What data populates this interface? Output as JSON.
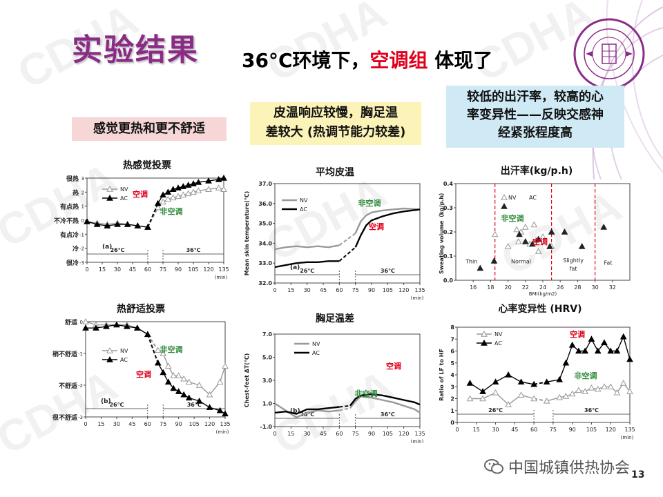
{
  "watermark": "CDHA",
  "title": "实验结果",
  "subtitle": {
    "part1": "36°C环境下，",
    "part2": "空调组",
    "part3": " 体现了"
  },
  "boxes": {
    "b1": "感觉更热和更不舒适",
    "b2_line1": "皮温响应较慢，胸足温",
    "b2_line2": "差较大 (热调节能力较差)",
    "b3_line1": "较低的出汗率，较高的心",
    "b3_line2": "率变异性——反映交感神",
    "b3_line3": "经紧张程度高"
  },
  "footer": {
    "org": "中国城镇供热协会",
    "page": "13"
  },
  "colors": {
    "title": "#8a2b86",
    "red": "#e0001b",
    "green": "#2e8b3a",
    "nv": "#999999",
    "ac": "#000000"
  },
  "chart_data": [
    {
      "id": "thermal-sensation",
      "type": "line",
      "title": "热感觉投票",
      "panel": "(a)",
      "x_unit": "(min)",
      "x_ticks": [
        0,
        15,
        30,
        45,
        60,
        75,
        90,
        105,
        120,
        135
      ],
      "ylim": [
        -3,
        3
      ],
      "y_ticks": [
        3,
        2,
        1,
        0,
        -1,
        -2,
        -3
      ],
      "y_labels": [
        "很热",
        "热",
        "有点热",
        "不冷不热",
        "有点冷",
        "冷",
        "很冷"
      ],
      "phase_labels": [
        "26℃",
        "36℃"
      ],
      "annotations": [
        {
          "text": "空调",
          "color": "red"
        },
        {
          "text": "非空调",
          "color": "green"
        }
      ],
      "series": [
        {
          "name": "NV",
          "marker": "triangle-open",
          "x": [
            0,
            10,
            20,
            30,
            40,
            50,
            60,
            70,
            75,
            80,
            85,
            90,
            95,
            100,
            105,
            110,
            120,
            130,
            135
          ],
          "y": [
            -0.1,
            -0.2,
            -0.3,
            -0.2,
            -0.3,
            -0.4,
            -0.5,
            0.9,
            1.3,
            1.5,
            1.6,
            1.7,
            1.8,
            1.9,
            2.0,
            2.1,
            2.2,
            2.3,
            2.2
          ]
        },
        {
          "name": "AC",
          "marker": "triangle-filled",
          "x": [
            0,
            10,
            20,
            30,
            40,
            50,
            60,
            70,
            75,
            80,
            85,
            90,
            95,
            100,
            105,
            110,
            120,
            130,
            135
          ],
          "y": [
            -0.1,
            -0.3,
            -0.4,
            -0.3,
            -0.3,
            -0.4,
            -0.5,
            1.2,
            1.8,
            2.0,
            2.2,
            2.3,
            2.4,
            2.5,
            2.6,
            2.7,
            2.8,
            2.9,
            3.0
          ]
        }
      ]
    },
    {
      "id": "mean-skin-temp",
      "type": "line",
      "title": "平均皮温",
      "panel": "(a)",
      "ylabel": "Mean skin temperature(℃)",
      "x_unit": "(min)",
      "x_ticks": [
        0,
        15,
        30,
        45,
        60,
        75,
        90,
        105,
        120,
        135
      ],
      "ylim": [
        32.0,
        37.0
      ],
      "y_ticks": [
        32.0,
        33.0,
        34.0,
        35.0,
        36.0,
        37.0
      ],
      "phase_labels": [
        "26℃",
        "36℃"
      ],
      "annotations": [
        {
          "text": "非空调",
          "color": "green"
        },
        {
          "text": "空调",
          "color": "red"
        }
      ],
      "series": [
        {
          "name": "NV",
          "x": [
            0,
            10,
            20,
            30,
            40,
            50,
            60,
            75,
            80,
            85,
            90,
            100,
            110,
            120,
            135
          ],
          "y": [
            33.7,
            33.8,
            33.85,
            33.8,
            33.85,
            33.8,
            33.9,
            34.5,
            35.1,
            35.4,
            35.55,
            35.65,
            35.7,
            35.75,
            35.7
          ]
        },
        {
          "name": "AC",
          "x": [
            0,
            10,
            20,
            30,
            40,
            50,
            60,
            75,
            80,
            85,
            90,
            100,
            110,
            120,
            135
          ],
          "y": [
            32.8,
            32.9,
            33.0,
            33.05,
            33.05,
            33.1,
            33.1,
            33.8,
            34.4,
            34.9,
            35.15,
            35.35,
            35.5,
            35.6,
            35.7
          ]
        }
      ]
    },
    {
      "id": "sweating-rate",
      "type": "scatter",
      "title": "出汗率(kg/p.h)",
      "ylabel": "Sweating volume（kg/p.h）",
      "xlabel": "BMI(kg/m2)",
      "xlim": [
        14,
        34
      ],
      "x_ticks": [
        16,
        18,
        20,
        22,
        24,
        26,
        28,
        30,
        32
      ],
      "ylim": [
        0,
        0.4
      ],
      "y_ticks": [
        0.0,
        0.1,
        0.2,
        0.3,
        0.4
      ],
      "zones": [
        "Thin",
        "Normal",
        "Slightly fat",
        "Fat"
      ],
      "boundaries": [
        18.5,
        25,
        30
      ],
      "annotations": [
        {
          "text": "非空调",
          "color": "green"
        },
        {
          "text": "空调",
          "color": "red"
        }
      ],
      "series": [
        {
          "name": "NV",
          "marker": "triangle-open",
          "x": [
            18.5,
            20,
            21,
            21.2,
            21.5,
            22,
            22.5,
            23,
            23.5,
            24,
            25
          ],
          "y": [
            0.19,
            0.14,
            0.21,
            0.16,
            0.2,
            0.22,
            0.15,
            0.23,
            0.12,
            0.18,
            0.14
          ]
        },
        {
          "name": "AC",
          "marker": "triangle-filled",
          "x": [
            16.8,
            18.4,
            21.3,
            22,
            22.8,
            23.5,
            24.8,
            25,
            26.5,
            28.5,
            31
          ],
          "y": [
            0.05,
            0.08,
            0.19,
            0.16,
            0.15,
            0.17,
            0.14,
            0.2,
            0.2,
            0.14,
            0.22
          ]
        }
      ]
    },
    {
      "id": "thermal-comfort",
      "type": "line",
      "title": "热舒适投票",
      "panel": "(b)",
      "x_unit": "(min)",
      "x_ticks": [
        0,
        15,
        30,
        45,
        60,
        75,
        90,
        105,
        120,
        135
      ],
      "ylim": [
        -3,
        0
      ],
      "y_ticks": [
        0,
        -1,
        -2,
        -3
      ],
      "y_labels": [
        "舒适",
        "稍不舒适",
        "不舒适",
        "很不舒适"
      ],
      "phase_labels": [
        "26℃",
        "36℃"
      ],
      "annotations": [
        {
          "text": "非空调",
          "color": "green"
        },
        {
          "text": "空调",
          "color": "red"
        }
      ],
      "series": [
        {
          "name": "NV",
          "marker": "triangle-open",
          "x": [
            0,
            10,
            20,
            30,
            40,
            50,
            60,
            70,
            75,
            80,
            85,
            90,
            95,
            100,
            110,
            120,
            130,
            135
          ],
          "y": [
            0,
            -0.1,
            -0.1,
            -0.1,
            -0.1,
            -0.2,
            -0.4,
            -0.9,
            -1.0,
            -1.4,
            -1.7,
            -1.7,
            -1.8,
            -1.9,
            -2.0,
            -2.3,
            -1.9,
            -1.4
          ]
        },
        {
          "name": "AC",
          "marker": "triangle-filled",
          "x": [
            0,
            10,
            20,
            30,
            40,
            50,
            60,
            70,
            75,
            80,
            85,
            90,
            95,
            100,
            110,
            120,
            130,
            135
          ],
          "y": [
            -0.2,
            -0.2,
            -0.15,
            -0.1,
            -0.15,
            -0.2,
            -0.4,
            -1.3,
            -1.6,
            -1.9,
            -2.1,
            -2.2,
            -2.3,
            -2.4,
            -2.5,
            -2.7,
            -2.8,
            -2.9
          ]
        }
      ]
    },
    {
      "id": "chest-feet-diff",
      "type": "line",
      "title": "胸足温差",
      "panel": "(b)",
      "ylabel": "Chest-feet ΔT(℃)",
      "x_unit": "(min)",
      "x_ticks": [
        0,
        15,
        30,
        45,
        60,
        75,
        90,
        105,
        120,
        135
      ],
      "ylim": [
        -1.0,
        7.0
      ],
      "y_ticks": [
        -1.0,
        1.0,
        3.0,
        5.0,
        7.0
      ],
      "phase_labels": [
        "26℃",
        "36℃"
      ],
      "annotations": [
        {
          "text": "空调",
          "color": "red"
        },
        {
          "text": "非空调",
          "color": "green"
        }
      ],
      "series": [
        {
          "name": "NV",
          "x": [
            0,
            10,
            20,
            30,
            40,
            50,
            60,
            70,
            75,
            80,
            90,
            100,
            110,
            120,
            130,
            135
          ],
          "y": [
            1.0,
            0.4,
            -0.2,
            0.2,
            0.4,
            0.3,
            0.4,
            0.6,
            1.2,
            1.6,
            1.5,
            1.3,
            1.1,
            0.8,
            0.5,
            0.2
          ]
        },
        {
          "name": "AC",
          "x": [
            0,
            10,
            20,
            30,
            40,
            50,
            60,
            70,
            75,
            80,
            90,
            100,
            110,
            120,
            130,
            135
          ],
          "y": [
            0.2,
            0.3,
            0.1,
            0.5,
            0.5,
            0.6,
            0.7,
            0.8,
            1.4,
            1.7,
            1.8,
            1.7,
            1.5,
            1.3,
            1.1,
            0.9
          ]
        }
      ]
    },
    {
      "id": "hrv",
      "type": "line",
      "title": "心率变异性 (HRV)",
      "ylabel": "Ratio of LF to HF",
      "x_unit": "(min)",
      "x_ticks": [
        0,
        15,
        30,
        45,
        60,
        75,
        90,
        105,
        120,
        135
      ],
      "ylim": [
        0,
        8
      ],
      "y_ticks": [
        0,
        1,
        2,
        3,
        4,
        5,
        6,
        7,
        8
      ],
      "phase_labels": [
        "26℃",
        "36℃"
      ],
      "annotations": [
        {
          "text": "空调",
          "color": "red"
        },
        {
          "text": "非空调",
          "color": "green"
        }
      ],
      "series": [
        {
          "name": "NV",
          "marker": "triangle-open",
          "x": [
            10,
            20,
            30,
            40,
            50,
            60,
            70,
            80,
            85,
            90,
            95,
            100,
            105,
            110,
            115,
            120,
            125,
            130,
            135
          ],
          "y": [
            2.0,
            2.0,
            2.5,
            1.5,
            2.3,
            2.0,
            1.8,
            2.1,
            2.2,
            2.4,
            2.7,
            2.6,
            2.9,
            2.8,
            3.0,
            3.0,
            2.5,
            3.3,
            2.6
          ]
        },
        {
          "name": "AC",
          "marker": "triangle-filled",
          "x": [
            10,
            20,
            30,
            40,
            50,
            60,
            70,
            80,
            85,
            90,
            95,
            100,
            105,
            110,
            115,
            120,
            125,
            130,
            135
          ],
          "y": [
            3.3,
            2.6,
            3.4,
            4.0,
            3.4,
            3.2,
            3.4,
            3.6,
            5.0,
            6.5,
            6.0,
            6.0,
            7.0,
            6.0,
            6.7,
            6.0,
            6.0,
            7.2,
            5.3
          ]
        }
      ]
    }
  ]
}
